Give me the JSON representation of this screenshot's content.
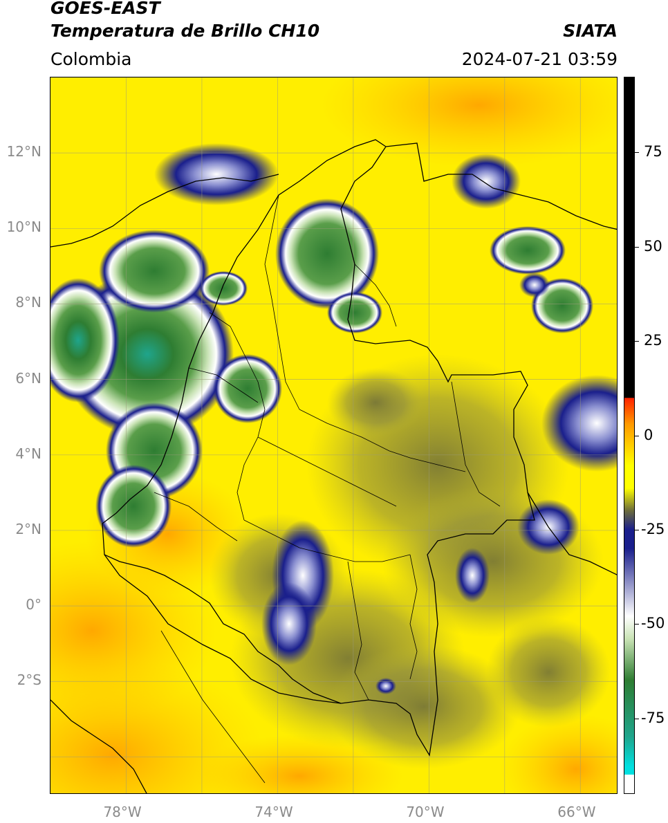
{
  "header": {
    "satellite": "GOES-EAST",
    "product": "Temperatura de Brillo CH10",
    "region": "Colombia",
    "agency": "SIATA",
    "datetime": "2024-07-21 03:59"
  },
  "map": {
    "lat_range": [
      -5,
      14
    ],
    "lon_range": [
      -80,
      -65
    ],
    "lat_ticks": [
      "12°N",
      "10°N",
      "8°N",
      "6°N",
      "4°N",
      "2°N",
      "0°",
      "2°S"
    ],
    "lon_ticks": [
      "78°W",
      "74°W",
      "70°W",
      "66°W"
    ],
    "gridlines": true
  },
  "colorbar": {
    "range": [
      -95,
      95
    ],
    "ticks": [
      "75",
      "50",
      "25",
      "0",
      "-25",
      "-50",
      "-75"
    ],
    "colors": {
      "white": "#ffffff",
      "cyan": "#00e0e0",
      "teal": "#1fa58c",
      "green": "#2e7d32",
      "light_green": "#c9e3b5",
      "navy": "#1a1f8c",
      "olive": "#6b6b3c",
      "yellow": "#ffff00",
      "orange": "#ff9900",
      "red": "#ff2200",
      "black": "#000000"
    }
  }
}
